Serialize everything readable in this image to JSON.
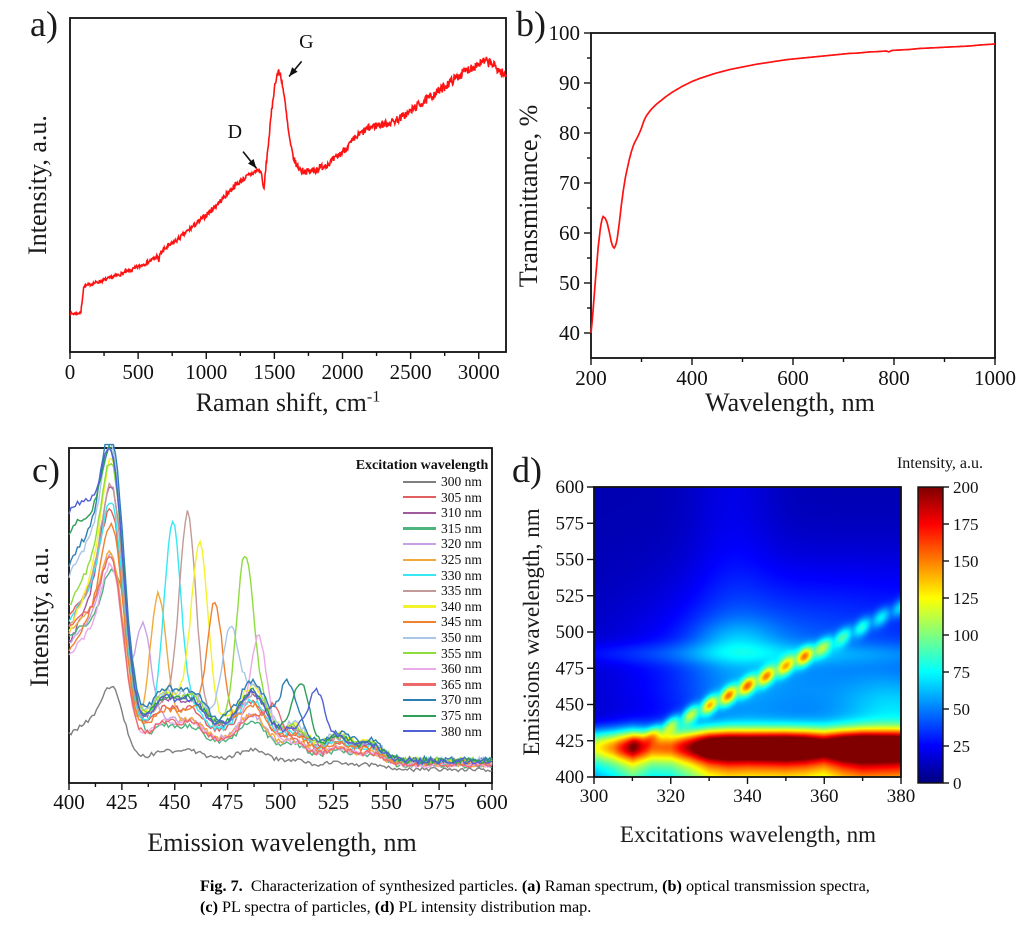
{
  "panels": {
    "a": {
      "letter": "a)",
      "xlabel": "Raman shift, cm",
      "xlabel_sup": "-1",
      "ylabel": "Intensity, a.u."
    },
    "b": {
      "letter": "b)",
      "xlabel": "Wavelength, nm",
      "ylabel": "Transmittance, %"
    },
    "c": {
      "letter": "c)",
      "xlabel": "Emission wavelength, nm",
      "ylabel": "Intensity, a.u.",
      "legend_title": "Excitation wavelength"
    },
    "d": {
      "letter": "d)",
      "xlabel": "Excitations wavelength, nm",
      "ylabel": "Emissions wavelength, nm",
      "colorbar_title": "Intensity, a.u."
    }
  },
  "caption": {
    "segments": [
      {
        "text": "Fig. 7.",
        "bold": true
      },
      {
        "text": "  Characterization of synthesized particles. ",
        "bold": false
      },
      {
        "text": "(a)",
        "bold": true
      },
      {
        "text": " Raman spectrum, ",
        "bold": false
      },
      {
        "text": "(b)",
        "bold": true
      },
      {
        "text": " optical transmission spectra, ",
        "bold": false
      },
      {
        "text": "(c)",
        "bold": true
      },
      {
        "text": " PL spectra of particles, ",
        "bold": false
      },
      {
        "text": "(d)",
        "bold": true
      },
      {
        "text": " PL intensity distribution map.",
        "bold": false
      }
    ]
  },
  "chart_data": [
    {
      "panel": "a",
      "type": "line",
      "title": "Raman spectrum",
      "xlabel": "Raman shift, cm^-1",
      "ylabel": "Intensity, a.u.",
      "line_color": "#fe1212",
      "x_range": [
        0,
        3200
      ],
      "x_ticks": [
        0,
        500,
        1000,
        1500,
        2000,
        2500,
        3000
      ],
      "x_minor_step": 250,
      "noise_amp": 1.0,
      "annotations": [
        {
          "label": "D",
          "peak_cm1": 1380,
          "label_x": 1210,
          "label_y": 64,
          "arrow": [
            1270,
            60,
            1368,
            55
          ]
        },
        {
          "label": "G",
          "peak_cm1": 1540,
          "label_x": 1735,
          "label_y": 91,
          "arrow": [
            1700,
            87,
            1608,
            82.5
          ]
        }
      ],
      "points": [
        [
          0,
          11.5
        ],
        [
          40,
          11.5
        ],
        [
          80,
          11.8
        ],
        [
          100,
          19.5
        ],
        [
          150,
          20.3
        ],
        [
          250,
          21.5
        ],
        [
          350,
          23
        ],
        [
          450,
          24.5
        ],
        [
          550,
          26.5
        ],
        [
          620,
          28
        ],
        [
          645,
          29
        ],
        [
          652,
          26.5
        ],
        [
          660,
          29.5
        ],
        [
          700,
          31
        ],
        [
          800,
          34
        ],
        [
          900,
          37.5
        ],
        [
          1000,
          41
        ],
        [
          1100,
          45
        ],
        [
          1200,
          49.5
        ],
        [
          1280,
          52
        ],
        [
          1340,
          53.5
        ],
        [
          1380,
          54.5
        ],
        [
          1400,
          54
        ],
        [
          1412,
          52
        ],
        [
          1422,
          47.5
        ],
        [
          1432,
          53
        ],
        [
          1450,
          60
        ],
        [
          1470,
          68
        ],
        [
          1490,
          76
        ],
        [
          1510,
          81.5
        ],
        [
          1528,
          84
        ],
        [
          1545,
          83
        ],
        [
          1560,
          80
        ],
        [
          1580,
          74
        ],
        [
          1600,
          67
        ],
        [
          1620,
          61.5
        ],
        [
          1645,
          57.5
        ],
        [
          1670,
          55.5
        ],
        [
          1700,
          54.3
        ],
        [
          1750,
          54
        ],
        [
          1800,
          54.5
        ],
        [
          1850,
          55.5
        ],
        [
          1900,
          56.5
        ],
        [
          1950,
          58
        ],
        [
          2000,
          60
        ],
        [
          2060,
          62.5
        ],
        [
          2120,
          65
        ],
        [
          2180,
          66.8
        ],
        [
          2240,
          67.8
        ],
        [
          2300,
          68.2
        ],
        [
          2360,
          68.8
        ],
        [
          2420,
          70
        ],
        [
          2480,
          71.5
        ],
        [
          2540,
          73.5
        ],
        [
          2600,
          75
        ],
        [
          2660,
          76.8
        ],
        [
          2720,
          78.5
        ],
        [
          2780,
          80.5
        ],
        [
          2840,
          82.3
        ],
        [
          2900,
          84
        ],
        [
          2950,
          85.3
        ],
        [
          3000,
          86.3
        ],
        [
          3050,
          87
        ],
        [
          3090,
          86.5
        ],
        [
          3130,
          85
        ],
        [
          3170,
          83.5
        ],
        [
          3200,
          82.5
        ]
      ]
    },
    {
      "panel": "b",
      "type": "line",
      "title": "Optical transmission spectrum",
      "xlabel": "Wavelength, nm",
      "ylabel": "Transmittance, %",
      "line_color": "#fe1212",
      "x_range": [
        200,
        1000
      ],
      "y_range": [
        35,
        100
      ],
      "x_ticks": [
        200,
        400,
        600,
        800,
        1000
      ],
      "y_ticks": [
        40,
        50,
        60,
        70,
        80,
        90,
        100
      ],
      "x_minor_step": 100,
      "y_minor_step": 5,
      "points": [
        [
          200,
          40
        ],
        [
          203,
          43
        ],
        [
          206,
          47
        ],
        [
          210,
          52
        ],
        [
          214,
          57
        ],
        [
          218,
          60.5
        ],
        [
          221,
          62.5
        ],
        [
          224,
          63.3
        ],
        [
          228,
          63
        ],
        [
          232,
          62
        ],
        [
          236,
          60.3
        ],
        [
          240,
          58.3
        ],
        [
          243,
          57.3
        ],
        [
          246,
          57
        ],
        [
          249,
          57.5
        ],
        [
          252,
          59
        ],
        [
          256,
          62
        ],
        [
          260,
          65.5
        ],
        [
          264,
          68.5
        ],
        [
          268,
          71
        ],
        [
          272,
          73
        ],
        [
          276,
          74.8
        ],
        [
          280,
          76.3
        ],
        [
          285,
          77.8
        ],
        [
          290,
          78.8
        ],
        [
          295,
          79.8
        ],
        [
          300,
          81
        ],
        [
          305,
          82.5
        ],
        [
          310,
          83.5
        ],
        [
          315,
          84.2
        ],
        [
          320,
          84.8
        ],
        [
          325,
          85.3
        ],
        [
          330,
          85.8
        ],
        [
          335,
          86.2
        ],
        [
          340,
          86.6
        ],
        [
          350,
          87.4
        ],
        [
          360,
          88.1
        ],
        [
          370,
          88.7
        ],
        [
          380,
          89.3
        ],
        [
          390,
          89.8
        ],
        [
          400,
          90.3
        ],
        [
          415,
          90.9
        ],
        [
          430,
          91.4
        ],
        [
          445,
          91.9
        ],
        [
          460,
          92.3
        ],
        [
          475,
          92.7
        ],
        [
          490,
          93
        ],
        [
          510,
          93.4
        ],
        [
          530,
          93.8
        ],
        [
          550,
          94.1
        ],
        [
          570,
          94.4
        ],
        [
          590,
          94.7
        ],
        [
          610,
          94.9
        ],
        [
          630,
          95.1
        ],
        [
          650,
          95.3
        ],
        [
          670,
          95.5
        ],
        [
          690,
          95.7
        ],
        [
          710,
          95.9
        ],
        [
          730,
          96
        ],
        [
          750,
          96.2
        ],
        [
          770,
          96.3
        ],
        [
          785,
          96.4
        ],
        [
          790,
          96.2
        ],
        [
          795,
          96.5
        ],
        [
          810,
          96.6
        ],
        [
          830,
          96.7
        ],
        [
          850,
          96.9
        ],
        [
          870,
          97
        ],
        [
          890,
          97.1
        ],
        [
          910,
          97.2
        ],
        [
          930,
          97.3
        ],
        [
          950,
          97.4
        ],
        [
          970,
          97.6
        ],
        [
          985,
          97.7
        ],
        [
          1000,
          97.8
        ]
      ]
    },
    {
      "panel": "c",
      "type": "line",
      "title": "PL spectra of particles",
      "xlabel": "Emission wavelength, nm",
      "ylabel": "Intensity, a.u.",
      "x_range": [
        400,
        600
      ],
      "x_ticks": [
        400,
        425,
        450,
        475,
        500,
        525,
        550,
        575,
        600
      ],
      "x_minor_step": 12.5,
      "legend_title": "Excitation wavelength",
      "main_peak_nm": 421,
      "common_bumps_nm": [
        445,
        458,
        487,
        507,
        528,
        543
      ],
      "series": [
        {
          "label": "300 nm",
          "excitation_nm": 300,
          "color": "#7f7f7f",
          "peak_amp": 21,
          "start": 6,
          "scatter_pos_nm": null,
          "scatter_amp": 0
        },
        {
          "label": "305 nm",
          "excitation_nm": 305,
          "color": "#e06060",
          "peak_amp": 62,
          "start": 30,
          "scatter_pos_nm": 408,
          "scatter_amp": 0
        },
        {
          "label": "310 nm",
          "excitation_nm": 310,
          "color": "#9f5aa0",
          "peak_amp": 70,
          "start": 20,
          "scatter_pos_nm": 422,
          "scatter_amp": 0
        },
        {
          "label": "315 nm",
          "excitation_nm": 315,
          "color": "#4fb37e",
          "peak_amp": 45,
          "start": 28,
          "scatter_pos_nm": 428,
          "scatter_amp": 18
        },
        {
          "label": "320 nm",
          "excitation_nm": 320,
          "color": "#c7a3e6",
          "peak_amp": 51,
          "start": 25,
          "scatter_pos_nm": 435,
          "scatter_amp": 32
        },
        {
          "label": "325 nm",
          "excitation_nm": 325,
          "color": "#f2a93b",
          "peak_amp": 51,
          "start": 28,
          "scatter_pos_nm": 442,
          "scatter_amp": 38
        },
        {
          "label": "330 nm",
          "excitation_nm": 330,
          "color": "#35e8f2",
          "peak_amp": 64,
          "start": 28,
          "scatter_pos_nm": 449,
          "scatter_amp": 55
        },
        {
          "label": "335 nm",
          "excitation_nm": 335,
          "color": "#c29a97",
          "peak_amp": 69,
          "start": 25,
          "scatter_pos_nm": 456,
          "scatter_amp": 56
        },
        {
          "label": "340 nm",
          "excitation_nm": 340,
          "color": "#f3f32b",
          "peak_amp": 76,
          "start": 22,
          "scatter_pos_nm": 462,
          "scatter_amp": 48
        },
        {
          "label": "345 nm",
          "excitation_nm": 345,
          "color": "#f08130",
          "peak_amp": 60,
          "start": 20,
          "scatter_pos_nm": 469,
          "scatter_amp": 38
        },
        {
          "label": "350 nm",
          "excitation_nm": 350,
          "color": "#a9c6e8",
          "peak_amp": 77,
          "start": 38,
          "scatter_pos_nm": 476,
          "scatter_amp": 26
        },
        {
          "label": "355 nm",
          "excitation_nm": 355,
          "color": "#8edc3d",
          "peak_amp": 74,
          "start": 30,
          "scatter_pos_nm": 483,
          "scatter_amp": 42
        },
        {
          "label": "360 nm",
          "excitation_nm": 360,
          "color": "#eaaae8",
          "peak_amp": 49,
          "start": 22,
          "scatter_pos_nm": 490,
          "scatter_amp": 25
        },
        {
          "label": "365 nm",
          "excitation_nm": 365,
          "color": "#ed6a6a",
          "peak_amp": 49,
          "start": 30,
          "scatter_pos_nm": 497,
          "scatter_amp": 10
        },
        {
          "label": "370 nm",
          "excitation_nm": 370,
          "color": "#2f7fb4",
          "peak_amp": 80,
          "start": 40,
          "scatter_pos_nm": 503,
          "scatter_amp": 12
        },
        {
          "label": "375 nm",
          "excitation_nm": 375,
          "color": "#2f9e57",
          "peak_amp": 72,
          "start": 52,
          "scatter_pos_nm": 510,
          "scatter_amp": 14
        },
        {
          "label": "380 nm",
          "excitation_nm": 380,
          "color": "#5061d6",
          "peak_amp": 71,
          "start": 58,
          "scatter_pos_nm": 517,
          "scatter_amp": 16
        }
      ]
    },
    {
      "panel": "d",
      "type": "heatmap",
      "title": "PL intensity distribution map",
      "xlabel": "Excitations wavelength, nm",
      "ylabel": "Emissions wavelength, nm",
      "x_range": [
        300,
        380
      ],
      "y_range": [
        400,
        600
      ],
      "x_ticks": [
        300,
        320,
        340,
        360,
        380
      ],
      "x_minor_step": 10,
      "y_ticks": [
        400,
        425,
        450,
        475,
        500,
        525,
        550,
        575,
        600
      ],
      "colorbar": {
        "title": "Intensity, a.u.",
        "ticks": [
          0,
          25,
          50,
          75,
          100,
          125,
          150,
          175,
          200
        ],
        "range": [
          0,
          200
        ],
        "colormap": "jet"
      },
      "emission_band_nm": 421,
      "excitations_nm": [
        300,
        305,
        310,
        315,
        320,
        325,
        330,
        335,
        340,
        345,
        350,
        355,
        360,
        365,
        370,
        375,
        380
      ],
      "band_amp": [
        95,
        120,
        160,
        120,
        120,
        150,
        190,
        200,
        195,
        200,
        205,
        195,
        170,
        195,
        205,
        195,
        190
      ],
      "scatter_amp": [
        0,
        0,
        10,
        40,
        60,
        75,
        95,
        100,
        100,
        95,
        85,
        90,
        55,
        48,
        45,
        40,
        38
      ],
      "scatter_line": {
        "em_at_310": 422,
        "slope_em_per_ex": 1.357
      },
      "horizontal_band": {
        "em": 485,
        "amp": 16
      },
      "background_level": 10
    }
  ]
}
